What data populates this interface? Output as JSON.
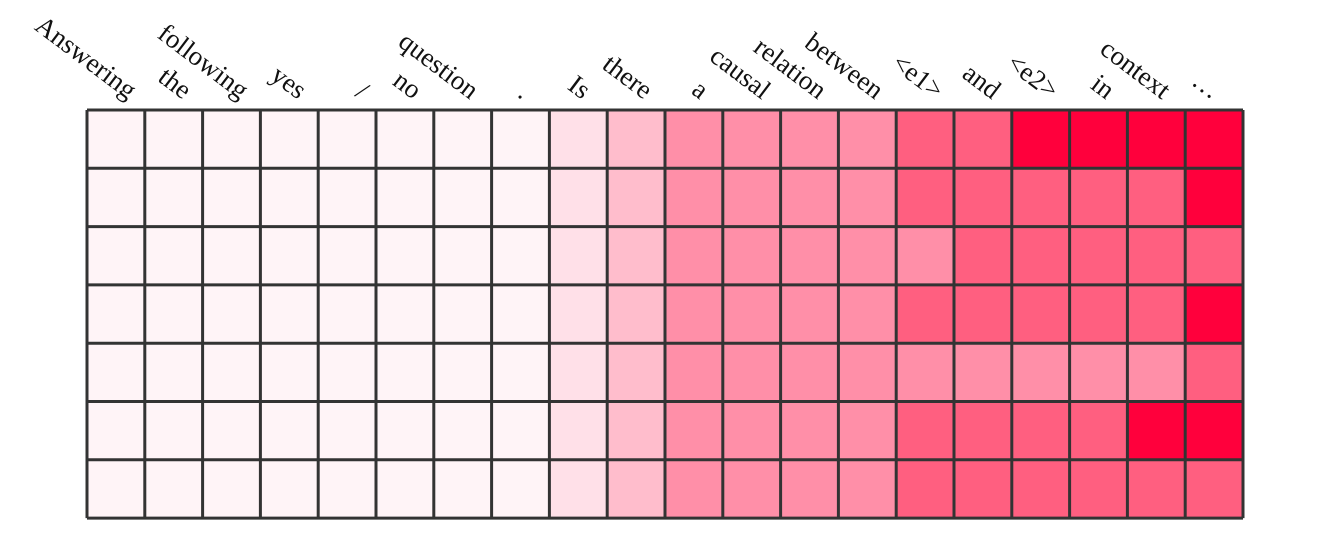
{
  "tokens": [
    "Answering",
    "the",
    "following",
    "yes",
    "/",
    "no",
    "question",
    ".",
    "Is",
    "there",
    "a",
    "causal",
    "relation",
    "between",
    "<e1>",
    "and",
    "<e2>",
    "in",
    "context",
    "…"
  ],
  "grid": {
    "columns": 20,
    "rows": 7,
    "palette": [
      "#FFF4F7",
      "#FFE0E8",
      "#FFBDCC",
      "#FF8FA8",
      "#FF5F80",
      "#FF003C"
    ],
    "cell_levels": [
      [
        0,
        0,
        0,
        0,
        0,
        0,
        0,
        0,
        1,
        2,
        3,
        3,
        3,
        3,
        4,
        4,
        5,
        5,
        5,
        5
      ],
      [
        0,
        0,
        0,
        0,
        0,
        0,
        0,
        0,
        1,
        2,
        3,
        3,
        3,
        3,
        4,
        4,
        4,
        4,
        4,
        5
      ],
      [
        0,
        0,
        0,
        0,
        0,
        0,
        0,
        0,
        1,
        2,
        3,
        3,
        3,
        3,
        3,
        4,
        4,
        4,
        4,
        4
      ],
      [
        0,
        0,
        0,
        0,
        0,
        0,
        0,
        0,
        1,
        2,
        3,
        3,
        3,
        3,
        4,
        4,
        4,
        4,
        4,
        5
      ],
      [
        0,
        0,
        0,
        0,
        0,
        0,
        0,
        0,
        1,
        2,
        3,
        3,
        3,
        3,
        3,
        3,
        3,
        3,
        3,
        4
      ],
      [
        0,
        0,
        0,
        0,
        0,
        0,
        0,
        0,
        1,
        2,
        3,
        3,
        3,
        3,
        4,
        4,
        4,
        4,
        5,
        5
      ],
      [
        0,
        0,
        0,
        0,
        0,
        0,
        0,
        0,
        1,
        2,
        3,
        3,
        3,
        3,
        4,
        4,
        4,
        4,
        4,
        4
      ]
    ],
    "grid_line_color": "#333333",
    "marker_line_color": "#4472C4",
    "marker_after_columns": [
      8,
      9,
      11,
      12,
      13,
      14,
      19
    ]
  }
}
